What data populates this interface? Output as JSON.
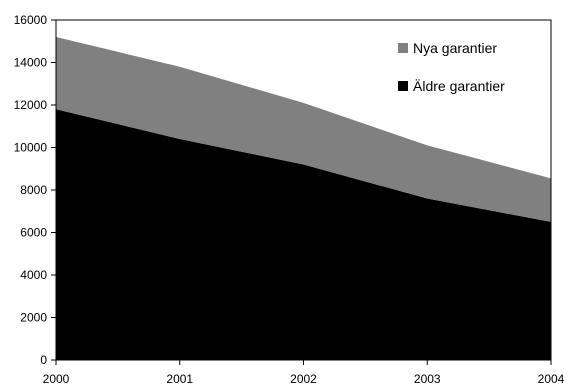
{
  "chart_data": {
    "type": "area",
    "stacked": true,
    "x": [
      "2000",
      "2001",
      "2002",
      "2003",
      "2004"
    ],
    "series": [
      {
        "name": "Äldre garantier",
        "values": [
          11800,
          10400,
          9200,
          7600,
          6500
        ],
        "color": "#000000"
      },
      {
        "name": "Nya garantier",
        "values": [
          3400,
          3400,
          2900,
          2500,
          2050
        ],
        "color": "#808080"
      }
    ],
    "yticks": [
      "0",
      "2000",
      "4000",
      "6000",
      "8000",
      "10000",
      "12000",
      "14000",
      "16000"
    ],
    "ylim": [
      0,
      16000
    ],
    "legend_position": "top-right",
    "grid": false
  }
}
